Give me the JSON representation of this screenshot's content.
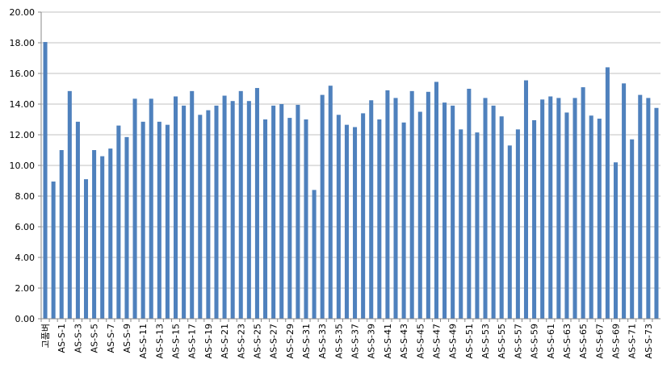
{
  "chart_data": {
    "type": "bar",
    "color": "#4f81bd",
    "grid": true,
    "categories": [
      "고품벼",
      null,
      "AS-S-1",
      null,
      "AS-S-3",
      null,
      "AS-S-5",
      null,
      "AS-S-7",
      null,
      "AS-S-9",
      null,
      "AS-S-11",
      null,
      "AS-S-13",
      null,
      "AS-S-15",
      null,
      "AS-S-17",
      null,
      "AS-S-19",
      null,
      "AS-S-21",
      null,
      "AS-S-23",
      null,
      "AS-S-25",
      null,
      "AS-S-27",
      null,
      "AS-S-29",
      null,
      "AS-S-31",
      null,
      "AS-S-33",
      null,
      "AS-S-35",
      null,
      "AS-S-37",
      null,
      "AS-S-39",
      null,
      "AS-S-41",
      null,
      "AS-S-43",
      null,
      "AS-S-45",
      null,
      "AS-S-47",
      null,
      "AS-S-49",
      null,
      "AS-S-51",
      null,
      "AS-S-53",
      null,
      "AS-S-55",
      null,
      "AS-S-57",
      null,
      "AS-S-59",
      null,
      "AS-S-61",
      null,
      "AS-S-63",
      null,
      "AS-S-65",
      null,
      "AS-S-67",
      null,
      "AS-S-69",
      null,
      "AS-S-71",
      null,
      "AS-S-73",
      null
    ],
    "values": [
      18.05,
      8.95,
      11.0,
      14.85,
      12.85,
      9.1,
      11.0,
      10.6,
      11.1,
      12.6,
      11.85,
      14.35,
      12.85,
      14.35,
      12.85,
      12.65,
      14.5,
      13.9,
      14.85,
      13.3,
      13.6,
      13.9,
      14.55,
      14.2,
      14.85,
      14.2,
      15.05,
      13.0,
      13.9,
      14.0,
      13.1,
      13.95,
      13.0,
      8.4,
      14.6,
      15.2,
      13.3,
      12.65,
      12.5,
      13.4,
      14.25,
      13.0,
      14.9,
      14.4,
      12.8,
      14.85,
      13.5,
      14.8,
      15.45,
      14.1,
      13.9,
      12.35,
      15.0,
      12.15,
      14.4,
      13.9,
      13.2,
      11.3,
      12.35,
      15.55,
      12.95,
      14.3,
      14.5,
      14.4,
      13.45,
      14.4,
      15.1,
      13.25,
      13.05,
      16.4,
      10.2,
      15.35,
      11.7,
      14.6,
      14.4,
      13.75
    ],
    "ylim": [
      0,
      20
    ],
    "yticks": [
      {
        "value": 0,
        "label": "0.00"
      },
      {
        "value": 2,
        "label": "2.00"
      },
      {
        "value": 4,
        "label": "4.00"
      },
      {
        "value": 6,
        "label": "6.00"
      },
      {
        "value": 8,
        "label": "8.00"
      },
      {
        "value": 10,
        "label": "10.00"
      },
      {
        "value": 12,
        "label": "12.00"
      },
      {
        "value": 14,
        "label": "14.00"
      },
      {
        "value": 16,
        "label": "16.00"
      },
      {
        "value": 18,
        "label": "18.00"
      },
      {
        "value": 20,
        "label": "20.00"
      }
    ]
  }
}
